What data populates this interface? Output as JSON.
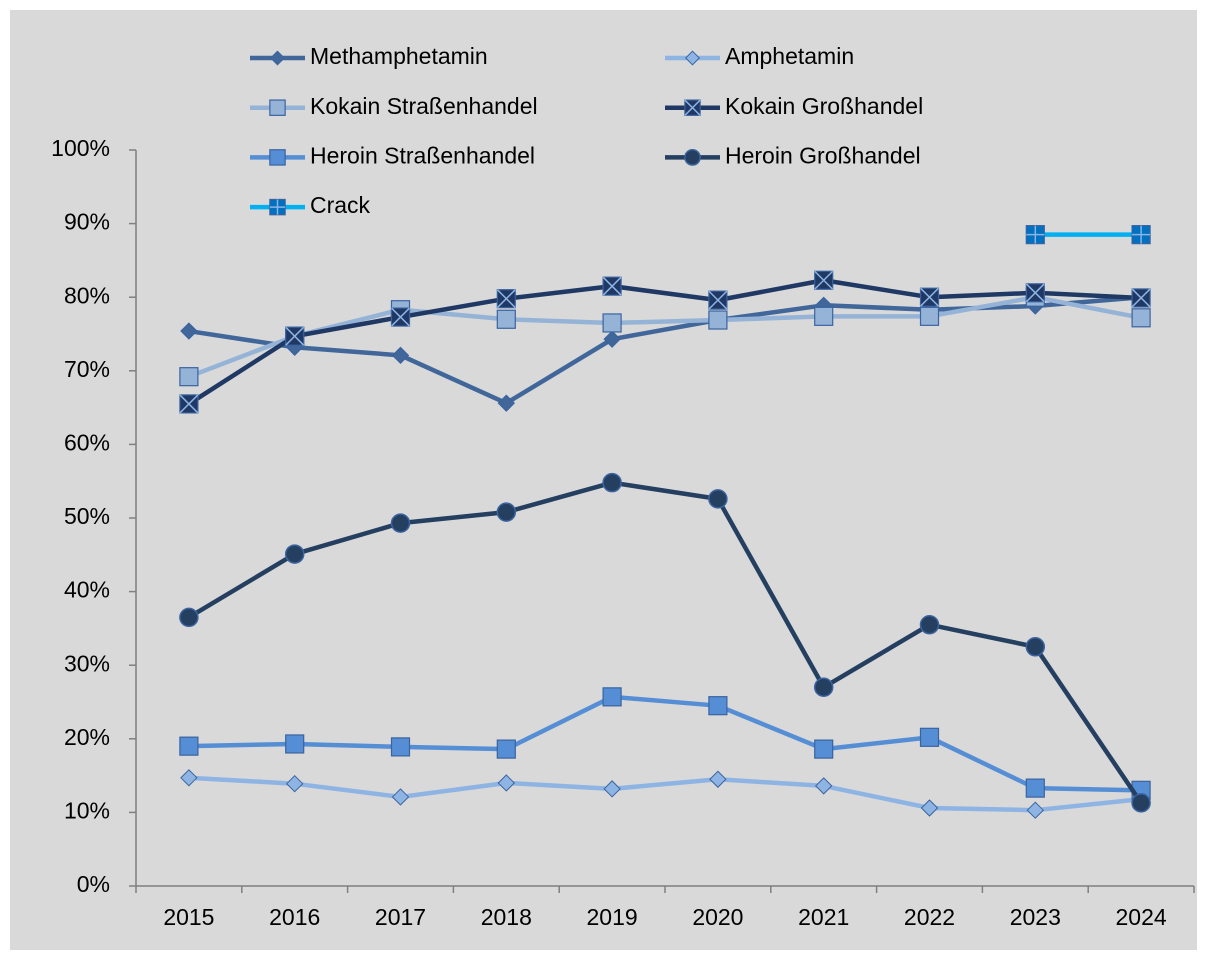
{
  "chart_data": {
    "type": "line",
    "categories": [
      "2015",
      "2016",
      "2017",
      "2018",
      "2019",
      "2020",
      "2021",
      "2022",
      "2023",
      "2024"
    ],
    "ylim": [
      0,
      100
    ],
    "yticks": [
      {
        "value": 0,
        "label": "0%"
      },
      {
        "value": 10,
        "label": "10%"
      },
      {
        "value": 20,
        "label": "20%"
      },
      {
        "value": 30,
        "label": "30%"
      },
      {
        "value": 40,
        "label": "40%"
      },
      {
        "value": 50,
        "label": "50%"
      },
      {
        "value": 60,
        "label": "60%"
      },
      {
        "value": 70,
        "label": "70%"
      },
      {
        "value": 80,
        "label": "80%"
      },
      {
        "value": 90,
        "label": "90%"
      },
      {
        "value": 100,
        "label": "100%"
      }
    ],
    "grid": false,
    "legend": "top",
    "series": [
      {
        "name": "Methamphetamin",
        "color": "#40669a",
        "marker": "diamond",
        "values": [
          75.4,
          73.2,
          72.1,
          65.6,
          74.3,
          76.9,
          78.9,
          78.3,
          78.8,
          80.0
        ]
      },
      {
        "name": "Amphetamin",
        "color": "#8eb4e3",
        "marker": "diamond",
        "values": [
          14.7,
          13.9,
          12.1,
          14.0,
          13.2,
          14.5,
          13.6,
          10.6,
          10.3,
          11.8
        ]
      },
      {
        "name": "Kokain Straßenhandel",
        "color": "#95b3d7",
        "marker": "square",
        "values": [
          69.2,
          74.7,
          78.3,
          77.0,
          76.5,
          76.9,
          77.4,
          77.4,
          80.0,
          77.2
        ]
      },
      {
        "name": "Kokain Großhandel",
        "color": "#1f3864",
        "marker": "xsquare",
        "values": [
          65.5,
          74.7,
          77.3,
          79.8,
          81.5,
          79.6,
          82.3,
          80.0,
          80.6,
          79.9
        ]
      },
      {
        "name": "Heroin Straßenhandel",
        "color": "#558ed5",
        "marker": "square",
        "values": [
          19.0,
          19.3,
          18.9,
          18.6,
          25.7,
          24.5,
          18.6,
          20.2,
          13.3,
          13.0
        ]
      },
      {
        "name": "Heroin Großhandel",
        "color": "#243f60",
        "marker": "circle",
        "values": [
          36.5,
          45.1,
          49.3,
          50.8,
          54.8,
          52.6,
          27.0,
          35.5,
          32.5,
          11.3
        ]
      },
      {
        "name": "Crack",
        "color": "#00b0f0",
        "marker": "plussquare",
        "values": [
          null,
          null,
          null,
          null,
          null,
          null,
          null,
          null,
          88.5,
          88.5
        ]
      }
    ]
  }
}
